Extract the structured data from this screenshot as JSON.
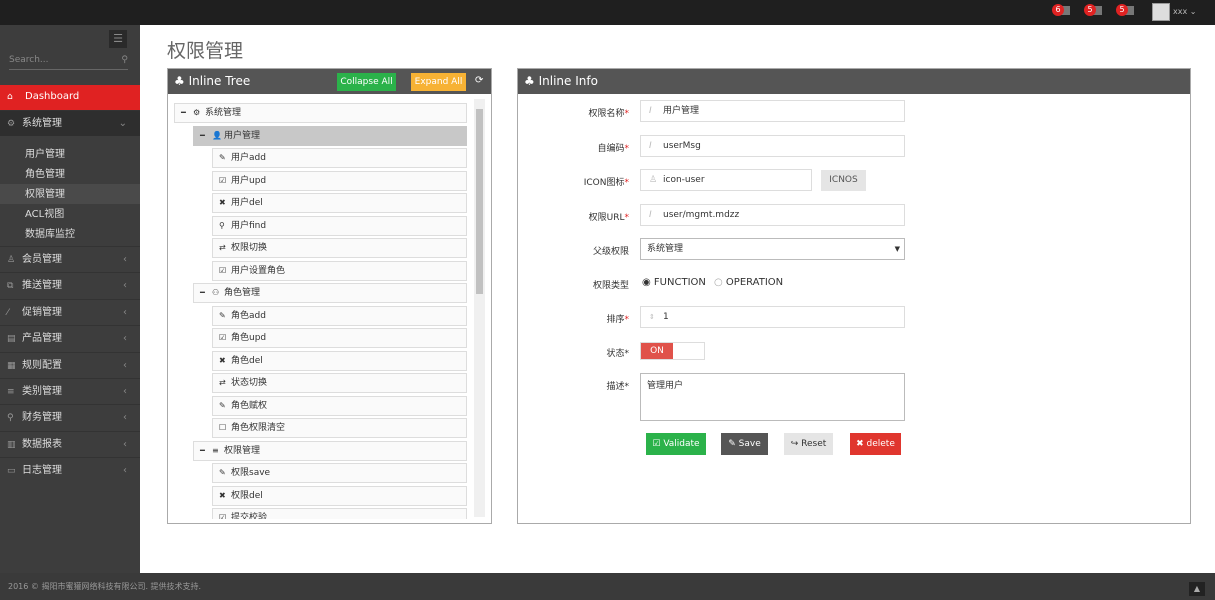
{
  "topbar": {
    "badges": [
      {
        "count": "6",
        "icon": "bell-icon"
      },
      {
        "count": "5",
        "icon": "envelope-icon"
      },
      {
        "count": "5",
        "icon": "calendar-icon"
      }
    ],
    "user": "xxx"
  },
  "sidebar": {
    "search_placeholder": "Search...",
    "dashboard": "Dashboard",
    "system": "系统管理",
    "submenu": [
      "用户管理",
      "角色管理",
      "权限管理",
      "ACL视图",
      "数据库监控"
    ],
    "items": [
      "会员管理",
      "推送管理",
      "促销管理",
      "产品管理",
      "规则配置",
      "类别管理",
      "财务管理",
      "数据报表",
      "日志管理"
    ]
  },
  "page_title": "权限管理",
  "tree": {
    "title": "Inline Tree",
    "collapse": "Collapse All",
    "expand": "Expand All",
    "nodes": [
      {
        "label": "系统管理",
        "level": 0,
        "icon": "⚙"
      },
      {
        "label": "用户管理",
        "level": 1,
        "icon": "👤"
      },
      {
        "label": "用户add",
        "level": 2,
        "icon": "✎"
      },
      {
        "label": "用户upd",
        "level": 2,
        "icon": "☑"
      },
      {
        "label": "用户del",
        "level": 2,
        "icon": "✖"
      },
      {
        "label": "用户find",
        "level": 2,
        "icon": "⚲"
      },
      {
        "label": "权限切换",
        "level": 2,
        "icon": "⇄"
      },
      {
        "label": "用户设置角色",
        "level": 2,
        "icon": "☑"
      },
      {
        "label": "角色管理",
        "level": 1,
        "icon": "⚇"
      },
      {
        "label": "角色add",
        "level": 2,
        "icon": "✎"
      },
      {
        "label": "角色upd",
        "level": 2,
        "icon": "☑"
      },
      {
        "label": "角色del",
        "level": 2,
        "icon": "✖"
      },
      {
        "label": "状态切换",
        "level": 2,
        "icon": "⇄"
      },
      {
        "label": "角色赋权",
        "level": 2,
        "icon": "✎"
      },
      {
        "label": "角色权限清空",
        "level": 2,
        "icon": "☐"
      },
      {
        "label": "权限管理",
        "level": 1,
        "icon": "≡"
      },
      {
        "label": "权限save",
        "level": 2,
        "icon": "✎"
      },
      {
        "label": "权限del",
        "level": 2,
        "icon": "✖"
      },
      {
        "label": "提交校验",
        "level": 2,
        "icon": "☑"
      }
    ]
  },
  "info": {
    "title": "Inline Info",
    "name_label": "权限名称",
    "name": "用户管理",
    "code_label": "自编码",
    "code": "userMsg",
    "icon_label": "ICON图标",
    "icon": "icon-user",
    "icons_btn": "ICNOS",
    "url_label": "权限URL",
    "url": "user/mgmt.mdzz",
    "parent_label": "父级权限",
    "parent": "系统管理",
    "type_label": "权限类型",
    "type_options": [
      "FUNCTION",
      "OPERATION"
    ],
    "type_selected": "FUNCTION",
    "order_label": "排序",
    "order": "1",
    "status_label": "状态",
    "status": "ON",
    "desc_label": "描述",
    "desc": "管理用户",
    "validate": "Validate",
    "save": "Save",
    "reset": "Reset",
    "delete": "delete"
  },
  "footer": "2016 © 揭阳市蜜獾网络科技有限公司. 提供技术支持."
}
